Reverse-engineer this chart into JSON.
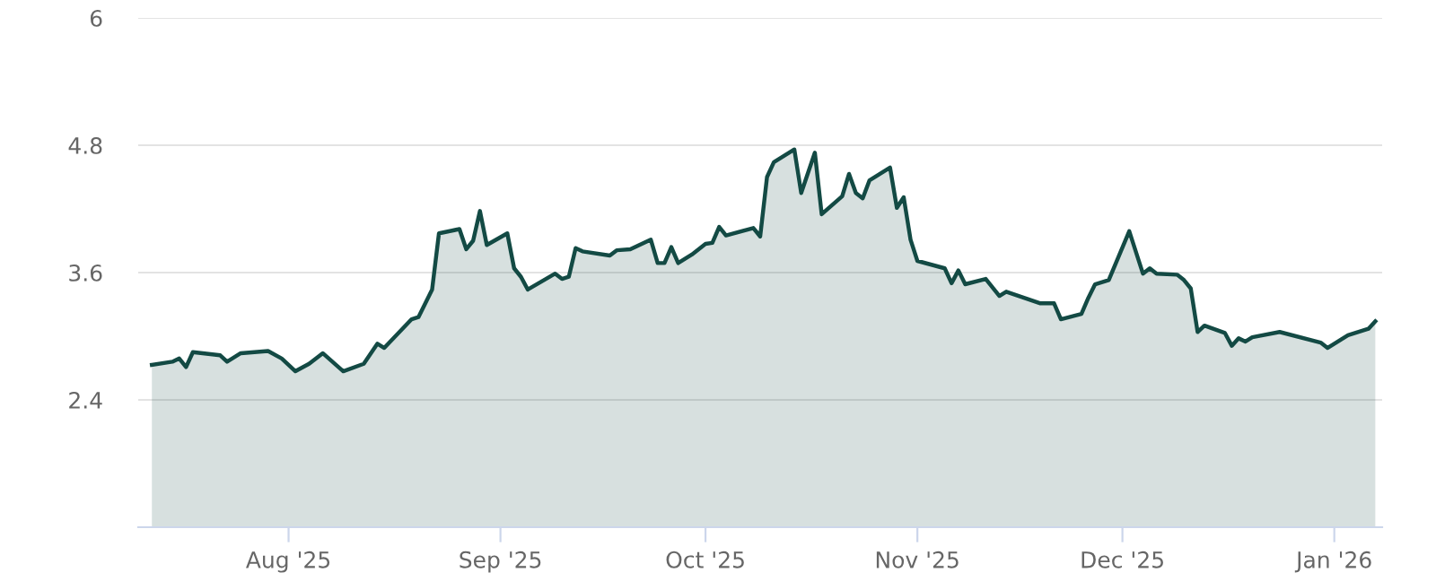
{
  "chart_data": {
    "type": "area",
    "x": [
      "2025-07-12",
      "2025-07-15",
      "2025-07-16",
      "2025-07-17",
      "2025-07-18",
      "2025-07-22",
      "2025-07-23",
      "2025-07-25",
      "2025-07-29",
      "2025-07-31",
      "2025-08-02",
      "2025-08-04",
      "2025-08-06",
      "2025-08-09",
      "2025-08-12",
      "2025-08-14",
      "2025-08-15",
      "2025-08-19",
      "2025-08-20",
      "2025-08-22",
      "2025-08-23",
      "2025-08-26",
      "2025-08-27",
      "2025-08-28",
      "2025-08-29",
      "2025-08-30",
      "2025-09-02",
      "2025-09-03",
      "2025-09-04",
      "2025-09-05",
      "2025-09-09",
      "2025-09-10",
      "2025-09-11",
      "2025-09-12",
      "2025-09-13",
      "2025-09-17",
      "2025-09-18",
      "2025-09-20",
      "2025-09-23",
      "2025-09-24",
      "2025-09-25",
      "2025-09-26",
      "2025-09-27",
      "2025-09-29",
      "2025-10-01",
      "2025-10-02",
      "2025-10-03",
      "2025-10-04",
      "2025-10-08",
      "2025-10-09",
      "2025-10-10",
      "2025-10-11",
      "2025-10-14",
      "2025-10-15",
      "2025-10-17",
      "2025-10-18",
      "2025-10-21",
      "2025-10-22",
      "2025-10-23",
      "2025-10-24",
      "2025-10-25",
      "2025-10-28",
      "2025-10-29",
      "2025-10-30",
      "2025-10-31",
      "2025-11-01",
      "2025-11-05",
      "2025-11-06",
      "2025-11-07",
      "2025-11-08",
      "2025-11-11",
      "2025-11-13",
      "2025-11-14",
      "2025-11-19",
      "2025-11-21",
      "2025-11-22",
      "2025-11-25",
      "2025-11-26",
      "2025-11-27",
      "2025-11-29",
      "2025-12-02",
      "2025-12-04",
      "2025-12-05",
      "2025-12-06",
      "2025-12-09",
      "2025-12-10",
      "2025-12-11",
      "2025-12-12",
      "2025-12-13",
      "2025-12-16",
      "2025-12-17",
      "2025-12-18",
      "2025-12-19",
      "2025-12-20",
      "2025-12-24",
      "2025-12-30",
      "2025-12-31",
      "2026-01-03",
      "2026-01-06",
      "2026-01-07"
    ],
    "series": [
      {
        "color": "#134a44",
        "values": [
          2.73,
          2.76,
          2.79,
          2.71,
          2.85,
          2.82,
          2.76,
          2.84,
          2.86,
          2.79,
          2.67,
          2.74,
          2.84,
          2.67,
          2.74,
          2.93,
          2.89,
          3.16,
          3.18,
          3.44,
          3.97,
          4.01,
          3.82,
          3.9,
          4.18,
          3.86,
          3.97,
          3.64,
          3.56,
          3.44,
          3.59,
          3.54,
          3.56,
          3.83,
          3.8,
          3.76,
          3.81,
          3.82,
          3.91,
          3.69,
          3.69,
          3.84,
          3.69,
          3.77,
          3.87,
          3.88,
          4.03,
          3.95,
          4.02,
          3.94,
          4.5,
          4.64,
          4.76,
          4.35,
          4.73,
          4.15,
          4.32,
          4.53,
          4.35,
          4.3,
          4.47,
          4.59,
          4.21,
          4.31,
          3.91,
          3.71,
          3.64,
          3.5,
          3.62,
          3.49,
          3.54,
          3.38,
          3.42,
          3.31,
          3.31,
          3.16,
          3.21,
          3.36,
          3.49,
          3.53,
          3.99,
          3.59,
          3.64,
          3.59,
          3.58,
          3.53,
          3.45,
          3.04,
          3.1,
          3.03,
          2.91,
          2.98,
          2.95,
          2.99,
          3.04,
          2.94,
          2.89,
          3.01,
          3.07,
          3.14
        ]
      }
    ],
    "xlim": [
      "2025-07-10",
      "2026-01-08"
    ],
    "xticks": [
      {
        "value": "2025-08-01",
        "label": "Aug '25"
      },
      {
        "value": "2025-09-01",
        "label": "Sep '25"
      },
      {
        "value": "2025-10-01",
        "label": "Oct '25"
      },
      {
        "value": "2025-11-01",
        "label": "Nov '25"
      },
      {
        "value": "2025-12-01",
        "label": "Dec '25"
      },
      {
        "value": "2026-01-01",
        "label": "Jan '26"
      }
    ],
    "ylim": [
      1.2,
      6
    ],
    "yticks": [
      2.4,
      3.6,
      4.8,
      6
    ],
    "grid": "y",
    "legend": false,
    "marker": "none",
    "line_style": "solid"
  }
}
